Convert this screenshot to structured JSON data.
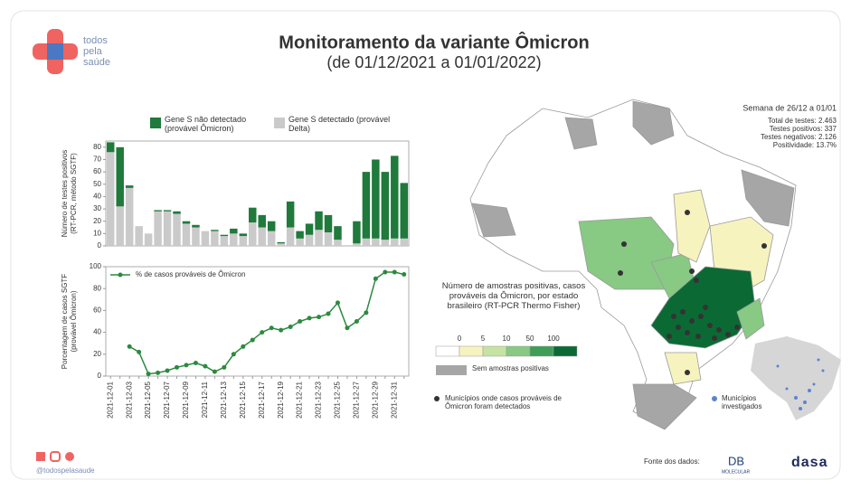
{
  "header": {
    "logo": [
      "todos",
      "pela",
      "saúde"
    ],
    "title": "Monitoramento da variante Ômicron",
    "subtitle": "(de 01/12/2021 a 01/01/2022)"
  },
  "chart_data": [
    {
      "type": "bar",
      "stacked": true,
      "y_label": [
        "Número de testes positivos",
        "(RT-PCR, método SGTF)"
      ],
      "series": [
        {
          "name": "Gene S não detectado (provável Ômicron)",
          "color": "#1f7a3b",
          "values": [
            8,
            48,
            2,
            0,
            0,
            1,
            1,
            2,
            2,
            2,
            0,
            1,
            1,
            4,
            2,
            12,
            10,
            8,
            1,
            21,
            6,
            9,
            15,
            14,
            11,
            0,
            18,
            54,
            64,
            55,
            67,
            45
          ]
        },
        {
          "name": "Gene S detectado (provável Delta)",
          "color": "#cacaca",
          "values": [
            76,
            32,
            47,
            16,
            10,
            28,
            28,
            26,
            18,
            15,
            12,
            12,
            8,
            10,
            8,
            19,
            15,
            12,
            2,
            15,
            6,
            9,
            13,
            11,
            5,
            0,
            2,
            6,
            6,
            5,
            6,
            6
          ]
        }
      ],
      "ylim": [
        0,
        85
      ],
      "yticks": [
        0,
        10,
        20,
        30,
        40,
        50,
        60,
        70,
        80
      ]
    },
    {
      "type": "line",
      "y_label": [
        "Porcentagem de casos SGTF",
        "(provável Ômicron)"
      ],
      "categories": [
        "2021-12-01",
        null,
        "2021-12-03",
        null,
        "2021-12-05",
        null,
        "2021-12-07",
        null,
        "2021-12-09",
        null,
        "2021-12-11",
        null,
        "2021-12-13",
        null,
        "2021-12-15",
        null,
        "2021-12-17",
        null,
        "2021-12-19",
        null,
        "2021-12-21",
        null,
        "2021-12-23",
        null,
        "2021-12-25",
        null,
        "2021-12-27",
        null,
        "2021-12-29",
        null,
        "2021-12-31",
        null
      ],
      "series": [
        {
          "name": "% de casos prováveis de Ômicron",
          "color": "#2b8a3e",
          "values": [
            null,
            null,
            27,
            22,
            2,
            3,
            5,
            8,
            10,
            12,
            9,
            4,
            8,
            20,
            27,
            33,
            40,
            44,
            42,
            45,
            50,
            53,
            54,
            57,
            67,
            44,
            50,
            58,
            89,
            95,
            95,
            93
          ]
        }
      ],
      "ylim": [
        0,
        100
      ],
      "yticks": [
        0,
        20,
        40,
        60,
        80,
        100
      ]
    }
  ],
  "stats": {
    "week": "Semana de 26/12 a 01/01",
    "lines": [
      "Total de testes: 2.463",
      "Testes positivos: 337",
      "Testes negativos: 2.126",
      "Positividade: 13.7%"
    ]
  },
  "map_legend": {
    "title": "Número de amostras positivas, casos prováveis da Ômicron, por estado brasileiro (RT-PCR Thermo Fisher)",
    "scale": [
      0,
      5,
      10,
      50,
      100
    ],
    "colors": [
      "#ffffff",
      "#f6f3bf",
      "#c5e3a3",
      "#88c984",
      "#3f9d58",
      "#0b6a34"
    ],
    "no_samples": "Sem amostras positivas",
    "detected": "Municípios onde casos prováveis de Ômicron foram detectados",
    "inset": "Municípios investigados"
  },
  "footer": {
    "handle": "@todospelasaude",
    "source": "Fonte dos dados:",
    "db": "DB",
    "molecular": "MOLECULAR",
    "dasa": "dasa"
  }
}
